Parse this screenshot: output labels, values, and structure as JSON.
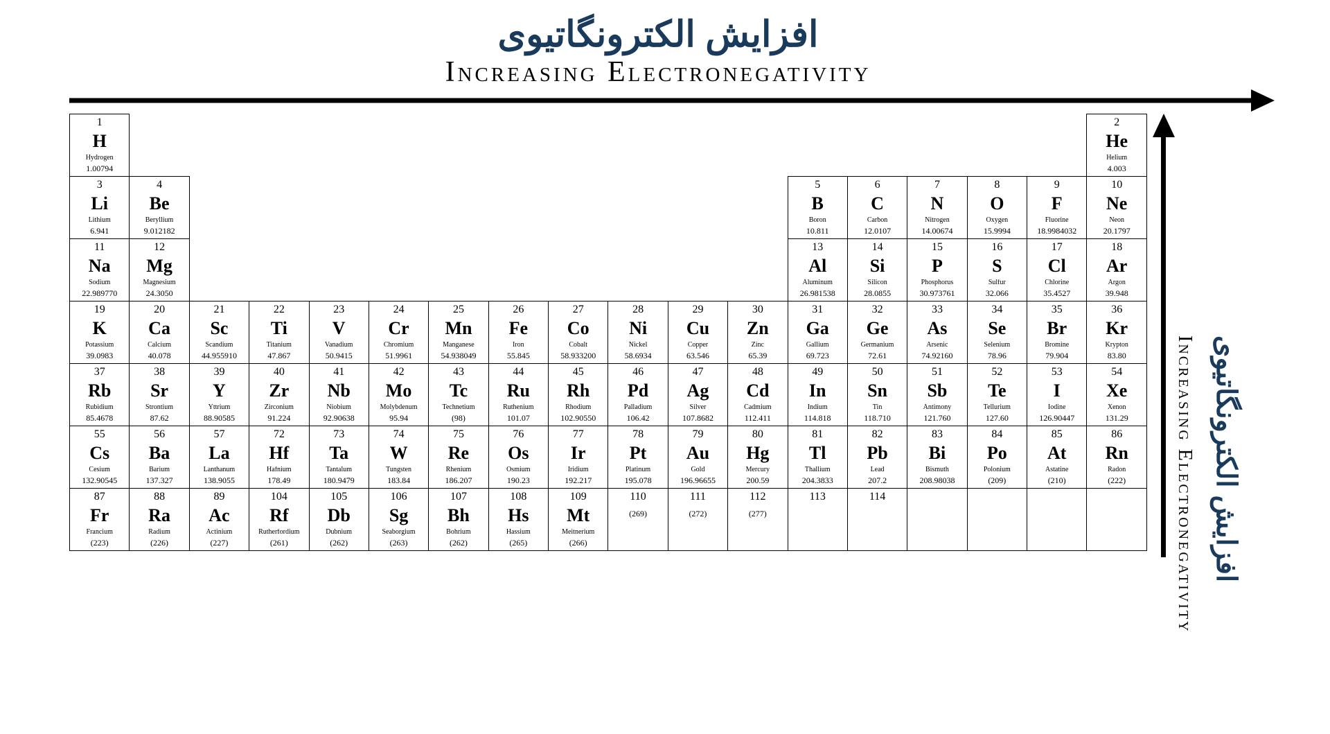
{
  "titles": {
    "persian": "افزایش الکترونگاتیوی",
    "english": "Increasing Electronegativity"
  },
  "side_labels": {
    "persian": "افزایش الکترونگاتیوی",
    "english": "Increasing Electronegativity"
  },
  "colors": {
    "title_persian": "#1a3a5c",
    "title_english": "#000000",
    "arrow": "#000000",
    "cell_border": "#000000",
    "background": "#ffffff"
  },
  "layout": {
    "columns": 18,
    "rows": 7,
    "cell_border_width": 1.5,
    "title_persian_fontsize": 52,
    "title_english_fontsize": 42,
    "element_symbol_fontsize": 26,
    "element_number_fontsize": 16,
    "element_name_fontsize": 10,
    "element_mass_fontsize": 12,
    "h_arrow_thickness": 7,
    "v_arrow_thickness": 7
  },
  "grid": [
    [
      {
        "num": "1",
        "sym": "H",
        "name": "Hydrogen",
        "mass": "1.00794"
      },
      null,
      null,
      null,
      null,
      null,
      null,
      null,
      null,
      null,
      null,
      null,
      null,
      null,
      null,
      null,
      null,
      {
        "num": "2",
        "sym": "He",
        "name": "Helium",
        "mass": "4.003"
      }
    ],
    [
      {
        "num": "3",
        "sym": "Li",
        "name": "Lithium",
        "mass": "6.941"
      },
      {
        "num": "4",
        "sym": "Be",
        "name": "Beryllium",
        "mass": "9.012182"
      },
      null,
      null,
      null,
      null,
      null,
      null,
      null,
      null,
      null,
      null,
      {
        "num": "5",
        "sym": "B",
        "name": "Boron",
        "mass": "10.811"
      },
      {
        "num": "6",
        "sym": "C",
        "name": "Carbon",
        "mass": "12.0107"
      },
      {
        "num": "7",
        "sym": "N",
        "name": "Nitrogen",
        "mass": "14.00674"
      },
      {
        "num": "8",
        "sym": "O",
        "name": "Oxygen",
        "mass": "15.9994"
      },
      {
        "num": "9",
        "sym": "F",
        "name": "Fluorine",
        "mass": "18.9984032"
      },
      {
        "num": "10",
        "sym": "Ne",
        "name": "Neon",
        "mass": "20.1797"
      }
    ],
    [
      {
        "num": "11",
        "sym": "Na",
        "name": "Sodium",
        "mass": "22.989770"
      },
      {
        "num": "12",
        "sym": "Mg",
        "name": "Magnesium",
        "mass": "24.3050"
      },
      null,
      null,
      null,
      null,
      null,
      null,
      null,
      null,
      null,
      null,
      {
        "num": "13",
        "sym": "Al",
        "name": "Aluminum",
        "mass": "26.981538"
      },
      {
        "num": "14",
        "sym": "Si",
        "name": "Silicon",
        "mass": "28.0855"
      },
      {
        "num": "15",
        "sym": "P",
        "name": "Phosphorus",
        "mass": "30.973761"
      },
      {
        "num": "16",
        "sym": "S",
        "name": "Sulfur",
        "mass": "32.066"
      },
      {
        "num": "17",
        "sym": "Cl",
        "name": "Chlorine",
        "mass": "35.4527"
      },
      {
        "num": "18",
        "sym": "Ar",
        "name": "Argon",
        "mass": "39.948"
      }
    ],
    [
      {
        "num": "19",
        "sym": "K",
        "name": "Potassium",
        "mass": "39.0983"
      },
      {
        "num": "20",
        "sym": "Ca",
        "name": "Calcium",
        "mass": "40.078"
      },
      {
        "num": "21",
        "sym": "Sc",
        "name": "Scandium",
        "mass": "44.955910"
      },
      {
        "num": "22",
        "sym": "Ti",
        "name": "Titanium",
        "mass": "47.867"
      },
      {
        "num": "23",
        "sym": "V",
        "name": "Vanadium",
        "mass": "50.9415"
      },
      {
        "num": "24",
        "sym": "Cr",
        "name": "Chromium",
        "mass": "51.9961"
      },
      {
        "num": "25",
        "sym": "Mn",
        "name": "Manganese",
        "mass": "54.938049"
      },
      {
        "num": "26",
        "sym": "Fe",
        "name": "Iron",
        "mass": "55.845"
      },
      {
        "num": "27",
        "sym": "Co",
        "name": "Cobalt",
        "mass": "58.933200"
      },
      {
        "num": "28",
        "sym": "Ni",
        "name": "Nickel",
        "mass": "58.6934"
      },
      {
        "num": "29",
        "sym": "Cu",
        "name": "Copper",
        "mass": "63.546"
      },
      {
        "num": "30",
        "sym": "Zn",
        "name": "Zinc",
        "mass": "65.39"
      },
      {
        "num": "31",
        "sym": "Ga",
        "name": "Gallium",
        "mass": "69.723"
      },
      {
        "num": "32",
        "sym": "Ge",
        "name": "Germanium",
        "mass": "72.61"
      },
      {
        "num": "33",
        "sym": "As",
        "name": "Arsenic",
        "mass": "74.92160"
      },
      {
        "num": "34",
        "sym": "Se",
        "name": "Selenium",
        "mass": "78.96"
      },
      {
        "num": "35",
        "sym": "Br",
        "name": "Bromine",
        "mass": "79.904"
      },
      {
        "num": "36",
        "sym": "Kr",
        "name": "Krypton",
        "mass": "83.80"
      }
    ],
    [
      {
        "num": "37",
        "sym": "Rb",
        "name": "Rubidium",
        "mass": "85.4678"
      },
      {
        "num": "38",
        "sym": "Sr",
        "name": "Strontium",
        "mass": "87.62"
      },
      {
        "num": "39",
        "sym": "Y",
        "name": "Yttrium",
        "mass": "88.90585"
      },
      {
        "num": "40",
        "sym": "Zr",
        "name": "Zirconium",
        "mass": "91.224"
      },
      {
        "num": "41",
        "sym": "Nb",
        "name": "Niobium",
        "mass": "92.90638"
      },
      {
        "num": "42",
        "sym": "Mo",
        "name": "Molybdenum",
        "mass": "95.94"
      },
      {
        "num": "43",
        "sym": "Tc",
        "name": "Technetium",
        "mass": "(98)"
      },
      {
        "num": "44",
        "sym": "Ru",
        "name": "Ruthenium",
        "mass": "101.07"
      },
      {
        "num": "45",
        "sym": "Rh",
        "name": "Rhodium",
        "mass": "102.90550"
      },
      {
        "num": "46",
        "sym": "Pd",
        "name": "Palladium",
        "mass": "106.42"
      },
      {
        "num": "47",
        "sym": "Ag",
        "name": "Silver",
        "mass": "107.8682"
      },
      {
        "num": "48",
        "sym": "Cd",
        "name": "Cadmium",
        "mass": "112.411"
      },
      {
        "num": "49",
        "sym": "In",
        "name": "Indium",
        "mass": "114.818"
      },
      {
        "num": "50",
        "sym": "Sn",
        "name": "Tin",
        "mass": "118.710"
      },
      {
        "num": "51",
        "sym": "Sb",
        "name": "Antimony",
        "mass": "121.760"
      },
      {
        "num": "52",
        "sym": "Te",
        "name": "Tellurium",
        "mass": "127.60"
      },
      {
        "num": "53",
        "sym": "I",
        "name": "Iodine",
        "mass": "126.90447"
      },
      {
        "num": "54",
        "sym": "Xe",
        "name": "Xenon",
        "mass": "131.29"
      }
    ],
    [
      {
        "num": "55",
        "sym": "Cs",
        "name": "Cesium",
        "mass": "132.90545"
      },
      {
        "num": "56",
        "sym": "Ba",
        "name": "Barium",
        "mass": "137.327"
      },
      {
        "num": "57",
        "sym": "La",
        "name": "Lanthanum",
        "mass": "138.9055"
      },
      {
        "num": "72",
        "sym": "Hf",
        "name": "Hafnium",
        "mass": "178.49"
      },
      {
        "num": "73",
        "sym": "Ta",
        "name": "Tantalum",
        "mass": "180.9479"
      },
      {
        "num": "74",
        "sym": "W",
        "name": "Tungsten",
        "mass": "183.84"
      },
      {
        "num": "75",
        "sym": "Re",
        "name": "Rhenium",
        "mass": "186.207"
      },
      {
        "num": "76",
        "sym": "Os",
        "name": "Osmium",
        "mass": "190.23"
      },
      {
        "num": "77",
        "sym": "Ir",
        "name": "Iridium",
        "mass": "192.217"
      },
      {
        "num": "78",
        "sym": "Pt",
        "name": "Platinum",
        "mass": "195.078"
      },
      {
        "num": "79",
        "sym": "Au",
        "name": "Gold",
        "mass": "196.96655"
      },
      {
        "num": "80",
        "sym": "Hg",
        "name": "Mercury",
        "mass": "200.59"
      },
      {
        "num": "81",
        "sym": "Tl",
        "name": "Thallium",
        "mass": "204.3833"
      },
      {
        "num": "82",
        "sym": "Pb",
        "name": "Lead",
        "mass": "207.2"
      },
      {
        "num": "83",
        "sym": "Bi",
        "name": "Bismuth",
        "mass": "208.98038"
      },
      {
        "num": "84",
        "sym": "Po",
        "name": "Polonium",
        "mass": "(209)"
      },
      {
        "num": "85",
        "sym": "At",
        "name": "Astatine",
        "mass": "(210)"
      },
      {
        "num": "86",
        "sym": "Rn",
        "name": "Radon",
        "mass": "(222)"
      }
    ],
    [
      {
        "num": "87",
        "sym": "Fr",
        "name": "Francium",
        "mass": "(223)"
      },
      {
        "num": "88",
        "sym": "Ra",
        "name": "Radium",
        "mass": "(226)"
      },
      {
        "num": "89",
        "sym": "Ac",
        "name": "Actinium",
        "mass": "(227)"
      },
      {
        "num": "104",
        "sym": "Rf",
        "name": "Rutherfordium",
        "mass": "(261)"
      },
      {
        "num": "105",
        "sym": "Db",
        "name": "Dubnium",
        "mass": "(262)"
      },
      {
        "num": "106",
        "sym": "Sg",
        "name": "Seaborgium",
        "mass": "(263)"
      },
      {
        "num": "107",
        "sym": "Bh",
        "name": "Bohrium",
        "mass": "(262)"
      },
      {
        "num": "108",
        "sym": "Hs",
        "name": "Hassium",
        "mass": "(265)"
      },
      {
        "num": "109",
        "sym": "Mt",
        "name": "Meitnerium",
        "mass": "(266)"
      },
      {
        "num": "110",
        "sym": "",
        "name": "",
        "mass": "(269)"
      },
      {
        "num": "111",
        "sym": "",
        "name": "",
        "mass": "(272)"
      },
      {
        "num": "112",
        "sym": "",
        "name": "",
        "mass": "(277)"
      },
      {
        "num": "113",
        "sym": "",
        "name": "",
        "mass": ""
      },
      {
        "num": "114",
        "sym": "",
        "name": "",
        "mass": ""
      },
      {
        "num": "",
        "sym": "",
        "name": "",
        "mass": ""
      },
      {
        "num": "",
        "sym": "",
        "name": "",
        "mass": ""
      },
      {
        "num": "",
        "sym": "",
        "name": "",
        "mass": ""
      },
      {
        "num": "",
        "sym": "",
        "name": "",
        "mass": ""
      }
    ]
  ]
}
